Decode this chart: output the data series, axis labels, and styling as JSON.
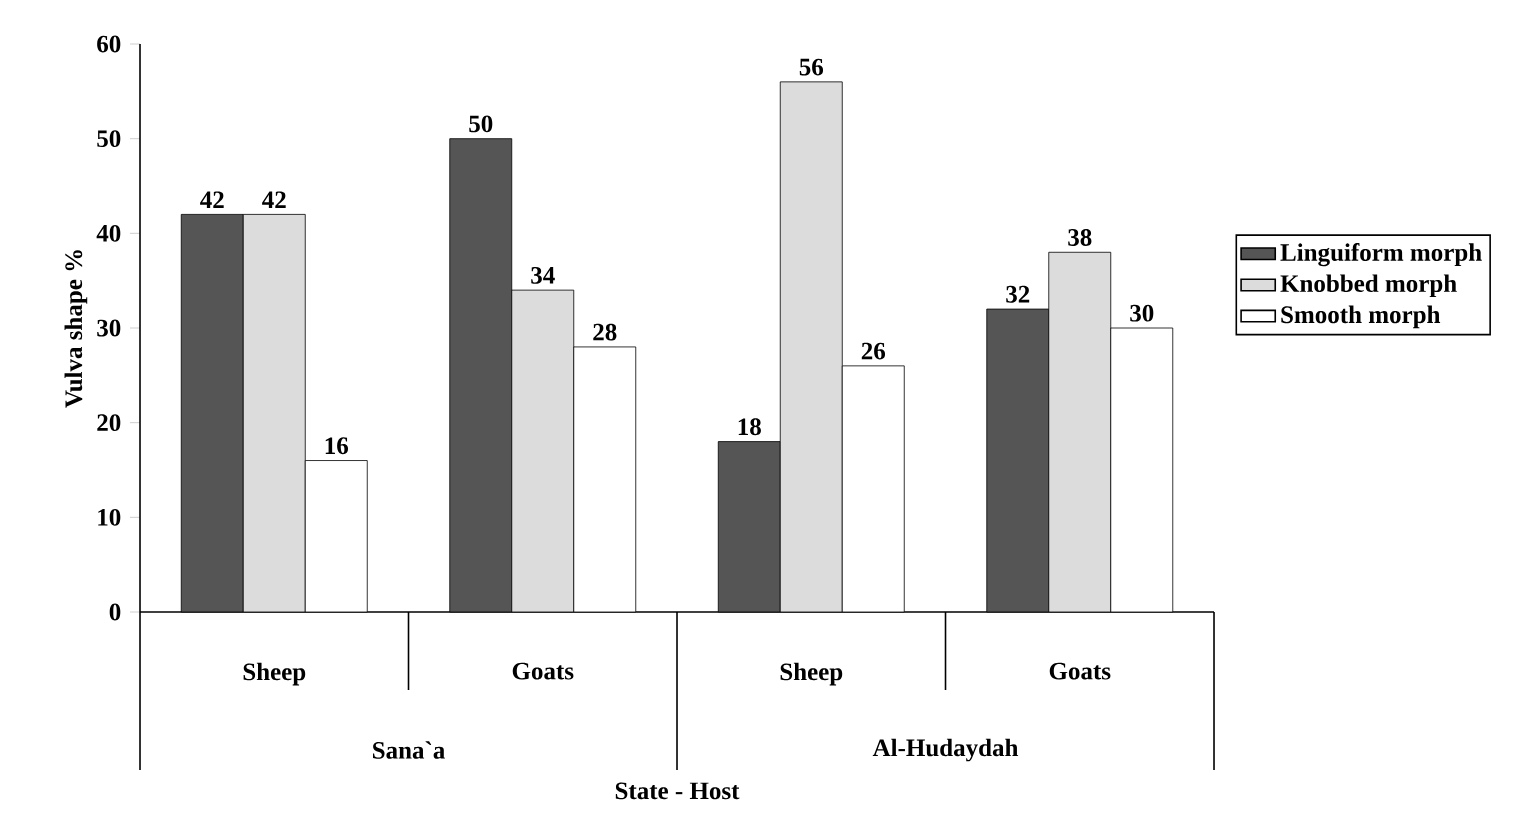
{
  "chart_data": {
    "type": "bar",
    "xlabel": "State - Host",
    "ylabel": "Vulva shape %",
    "categories": [
      "Sheep",
      "Goats",
      "Sheep",
      "Goats"
    ],
    "annotations": [
      "Sana`a",
      "Al-Hudaydah"
    ],
    "series": [
      {
        "name": "Linguiform morph",
        "color": "#555555",
        "values": [
          42,
          50,
          18,
          32
        ]
      },
      {
        "name": "Knobbed morph",
        "color": "#dcdcdc",
        "values": [
          42,
          34,
          56,
          38
        ]
      },
      {
        "name": "Smooth morph",
        "color": "#ffffff",
        "values": [
          16,
          28,
          26,
          30
        ]
      }
    ],
    "ylim": [
      0,
      60
    ],
    "yticks": [
      0,
      10,
      20,
      30,
      40,
      50,
      60
    ],
    "data_labels": true,
    "legend": "right",
    "grid": false
  }
}
